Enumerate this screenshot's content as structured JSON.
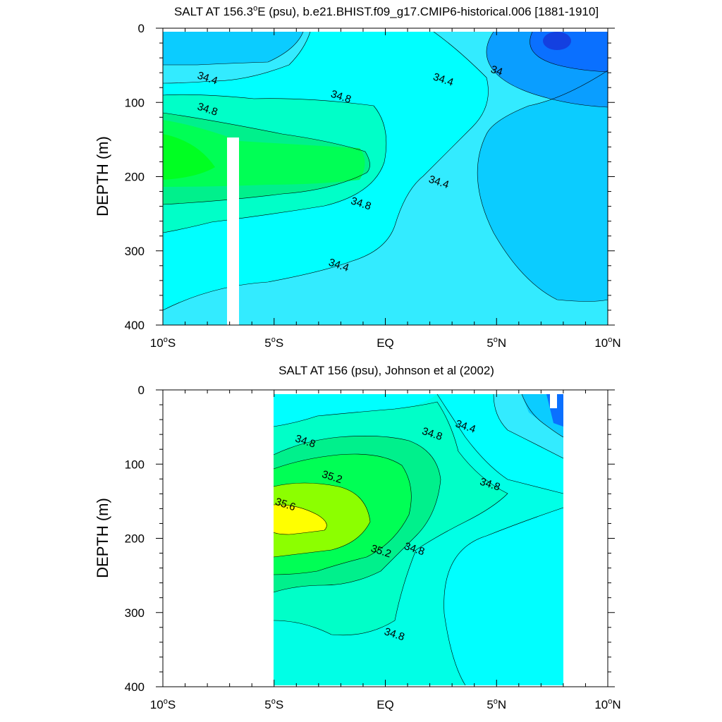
{
  "chart_data": [
    {
      "type": "heatmap",
      "title": "SALT AT 156.3°E (psu), b.e21.BHIST.f09_g17.CMIP6-historical.006 [1881-1910]",
      "title_parts": {
        "pre": "SALT AT 156.3",
        "deg": "o",
        "post": "E (psu), b.e21.BHIST.f09_g17.CMIP6-historical.006 [1881-1910]"
      },
      "xlabel": "",
      "ylabel": "DEPTH (m)",
      "xlim": [
        -10,
        10
      ],
      "ylim": [
        400,
        0
      ],
      "y_reversed": true,
      "x_ticks": [
        {
          "value": -10,
          "num": "10",
          "hem": "S"
        },
        {
          "value": -5,
          "num": "5",
          "hem": "S"
        },
        {
          "value": 0,
          "num": "EQ",
          "hem": ""
        },
        {
          "value": 5,
          "num": "5",
          "hem": "N"
        },
        {
          "value": 10,
          "num": "10",
          "hem": "N"
        }
      ],
      "y_ticks": [
        0,
        100,
        200,
        300,
        400
      ],
      "contour_interval": 0.2,
      "contour_labels": [
        {
          "text": "34.4",
          "x": -8.0,
          "y": 68
        },
        {
          "text": "34.8",
          "x": -8.0,
          "y": 110
        },
        {
          "text": "34.8",
          "x": -2.0,
          "y": 93
        },
        {
          "text": "34.4",
          "x": 2.6,
          "y": 70
        },
        {
          "text": "34",
          "x": 5.0,
          "y": 58
        },
        {
          "text": "34.4",
          "x": 2.4,
          "y": 208
        },
        {
          "text": "34.8",
          "x": -1.1,
          "y": 237
        },
        {
          "text": "34.4",
          "x": -2.1,
          "y": 320
        }
      ],
      "missing_regions": [
        {
          "x": [
            -7.1,
            -6.6
          ],
          "y": [
            145,
            400
          ]
        }
      ],
      "grid": false
    },
    {
      "type": "heatmap",
      "title": "SALT AT 156 (psu), Johnson et al (2002)",
      "xlabel": "",
      "ylabel": "DEPTH (m)",
      "xlim": [
        -10,
        10
      ],
      "ylim": [
        400,
        0
      ],
      "y_reversed": true,
      "data_x_range": [
        -5,
        8
      ],
      "x_ticks": [
        {
          "value": -10,
          "num": "10",
          "hem": "S"
        },
        {
          "value": -5,
          "num": "5",
          "hem": "S"
        },
        {
          "value": 0,
          "num": "EQ",
          "hem": ""
        },
        {
          "value": 5,
          "num": "5",
          "hem": "N"
        },
        {
          "value": 10,
          "num": "10",
          "hem": "N"
        }
      ],
      "y_ticks": [
        0,
        100,
        200,
        300,
        400
      ],
      "contour_interval": 0.2,
      "contour_labels": [
        {
          "text": "34.8",
          "x": -3.6,
          "y": 70
        },
        {
          "text": "34.8",
          "x": 2.1,
          "y": 60
        },
        {
          "text": "34.4",
          "x": 3.6,
          "y": 50
        },
        {
          "text": "35.2",
          "x": -2.4,
          "y": 118
        },
        {
          "text": "35.6",
          "x": -4.5,
          "y": 155
        },
        {
          "text": "35.2",
          "x": -0.2,
          "y": 218
        },
        {
          "text": "34.8",
          "x": 1.3,
          "y": 215
        },
        {
          "text": "34.8",
          "x": 0.4,
          "y": 330
        },
        {
          "text": "34.8",
          "x": 4.7,
          "y": 128
        }
      ],
      "grid": false
    }
  ]
}
